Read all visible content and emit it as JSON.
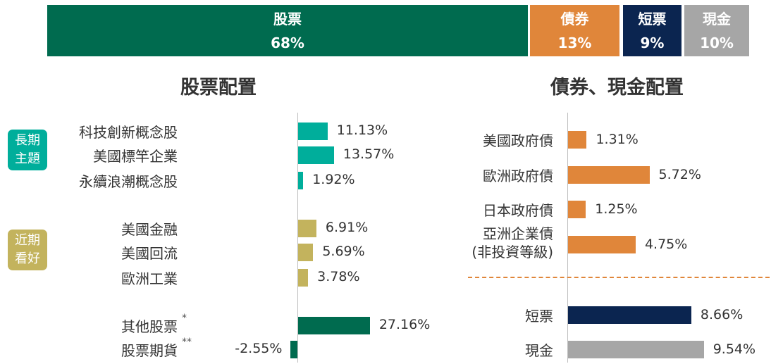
{
  "colors": {
    "equity": "#006b4f",
    "bond": "#e0863a",
    "short_term": "#0b2550",
    "cash": "#a6a6a6",
    "long_term_theme": "#00ae9b",
    "near_term_theme": "#c3b35d"
  },
  "allocation": [
    {
      "label": "股票",
      "value": "68%"
    },
    {
      "label": "債券",
      "value": "13%"
    },
    {
      "label": "短票",
      "value": "9%"
    },
    {
      "label": "現金",
      "value": "10%"
    }
  ],
  "titles": {
    "equity": "股票配置",
    "bond_cash": "債券、現金配置"
  },
  "tags": {
    "long_term": "長期主題",
    "long_term_l1": "長期",
    "long_term_l2": "主題",
    "near_term": "近期看好",
    "near_term_l1": "近期",
    "near_term_l2": "看好"
  },
  "chart_data": [
    {
      "type": "bar",
      "title": "股票配置",
      "categories": [
        "科技創新概念股",
        "美國標竿企業",
        "永續浪潮概念股",
        "美國金融",
        "美國回流",
        "歐洲工業",
        "其他股票",
        "股票期貨"
      ],
      "values": [
        11.13,
        13.57,
        1.92,
        6.91,
        5.69,
        3.78,
        27.16,
        -2.55
      ],
      "labels": [
        "11.13%",
        "13.57%",
        "1.92%",
        "6.91%",
        "5.69%",
        "3.78%",
        "27.16%",
        "-2.55%"
      ],
      "groups": [
        "長期主題",
        "長期主題",
        "長期主題",
        "近期看好",
        "近期看好",
        "近期看好",
        "",
        ""
      ],
      "footnote_marks": [
        "",
        "",
        "",
        "",
        "",
        "",
        "*",
        "**"
      ]
    },
    {
      "type": "bar",
      "title": "債券、現金配置",
      "categories": [
        "美國政府債",
        "歐洲政府債",
        "日本政府債",
        "亞洲企業債(非投資等級)",
        "短票",
        "現金"
      ],
      "category_lines": [
        [
          "美國政府債"
        ],
        [
          "歐洲政府債"
        ],
        [
          "日本政府債"
        ],
        [
          "亞洲企業債",
          "(非投資等級)"
        ],
        [
          "短票"
        ],
        [
          "現金"
        ]
      ],
      "values": [
        1.31,
        5.72,
        1.25,
        4.75,
        8.66,
        9.54
      ],
      "labels": [
        "1.31%",
        "5.72%",
        "1.25%",
        "4.75%",
        "8.66%",
        "9.54%"
      ]
    }
  ]
}
